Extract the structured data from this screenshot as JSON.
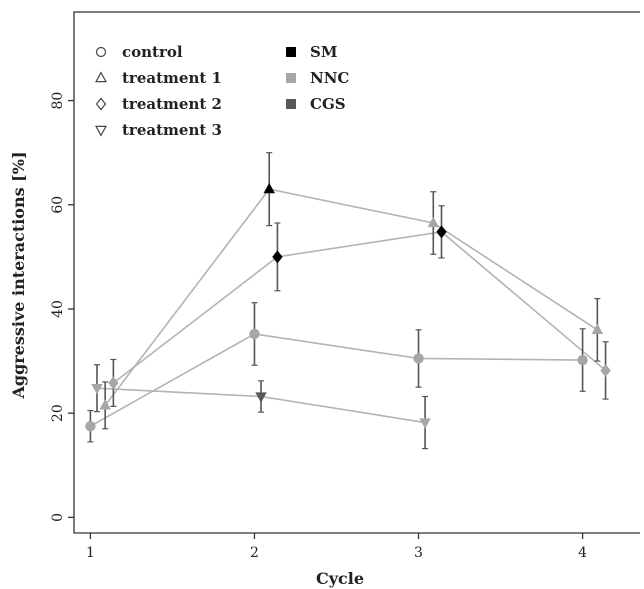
{
  "chart_data": {
    "type": "scatter",
    "title": "",
    "xlabel": "Cycle",
    "ylabel": "Aggressive interactions [%]",
    "xlim": [
      0.9,
      4.35
    ],
    "ylim": [
      -3,
      97
    ],
    "xticks": [
      1,
      2,
      3,
      4
    ],
    "yticks": [
      0,
      20,
      40,
      60,
      80
    ],
    "grid": false,
    "legend_position": "top-left",
    "colors": {
      "SM": "#000000",
      "NNC": "#a6a6a6",
      "CGS": "#595959",
      "line": "#b3b3b3",
      "errorbar": "#555555"
    },
    "legend_shapes": [
      {
        "label": "control",
        "marker": "circle"
      },
      {
        "label": "treatment 1",
        "marker": "triangle-up"
      },
      {
        "label": "treatment 2",
        "marker": "diamond"
      },
      {
        "label": "treatment 3",
        "marker": "triangle-down"
      }
    ],
    "legend_colors": [
      {
        "label": "SM",
        "color": "#000000"
      },
      {
        "label": "NNC",
        "color": "#a6a6a6"
      },
      {
        "label": "CGS",
        "color": "#595959"
      }
    ],
    "series": [
      {
        "name": "control",
        "marker": "circle",
        "points": [
          {
            "x": 1.0,
            "y": 17.5,
            "err": 3,
            "color": "#a6a6a6"
          },
          {
            "x": 2.0,
            "y": 35.2,
            "err": 6,
            "color": "#a6a6a6"
          },
          {
            "x": 3.0,
            "y": 30.5,
            "err": 5.5,
            "color": "#a6a6a6"
          },
          {
            "x": 4.0,
            "y": 30.2,
            "err": 6,
            "color": "#a6a6a6"
          }
        ]
      },
      {
        "name": "treatment 1",
        "marker": "triangle-up",
        "points": [
          {
            "x": 1.09,
            "y": 21.5,
            "err": 4.5,
            "color": "#a6a6a6"
          },
          {
            "x": 2.09,
            "y": 63.0,
            "err": 7,
            "color": "#000000"
          },
          {
            "x": 3.09,
            "y": 56.5,
            "err": 6,
            "color": "#a6a6a6"
          },
          {
            "x": 4.09,
            "y": 36.0,
            "err": 6,
            "color": "#a6a6a6"
          }
        ]
      },
      {
        "name": "treatment 2",
        "marker": "diamond",
        "points": [
          {
            "x": 1.14,
            "y": 25.8,
            "err": 4.5,
            "color": "#a6a6a6"
          },
          {
            "x": 2.14,
            "y": 50.0,
            "err": 6.5,
            "color": "#000000"
          },
          {
            "x": 3.14,
            "y": 54.8,
            "err": 5,
            "color": "#000000"
          },
          {
            "x": 4.14,
            "y": 28.2,
            "err": 5.5,
            "color": "#a6a6a6"
          }
        ]
      },
      {
        "name": "treatment 3",
        "marker": "triangle-down",
        "points": [
          {
            "x": 1.04,
            "y": 24.8,
            "err": 4.5,
            "color": "#a6a6a6"
          },
          {
            "x": 2.04,
            "y": 23.2,
            "err": 3,
            "color": "#595959"
          },
          {
            "x": 3.04,
            "y": 18.2,
            "err": 5,
            "color": "#a6a6a6"
          }
        ]
      }
    ]
  }
}
